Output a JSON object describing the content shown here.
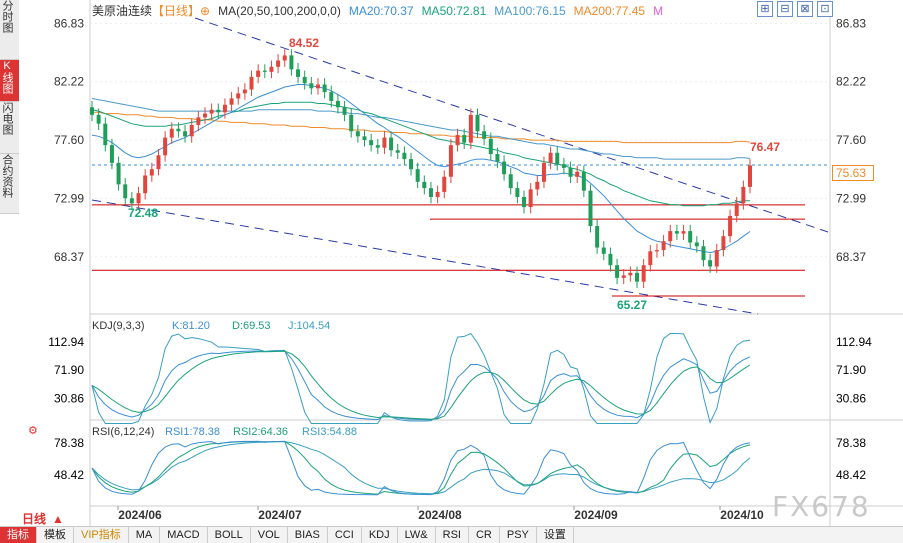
{
  "side_tabs": [
    {
      "label": "分时图",
      "active": false
    },
    {
      "label": "K线图",
      "active": true
    },
    {
      "label": "闪电图",
      "active": false
    },
    {
      "label": "合约资料",
      "active": false
    }
  ],
  "header": {
    "symbol": "美原油连续",
    "period_tag": "【日线】",
    "ma_title": "MA(20,50,100,200,0,0)",
    "ma20": "MA20:70.37",
    "ma50": "MA50:72.81",
    "ma100": "MA100:76.15",
    "ma200": "MA200:77.45",
    "m_label": "M",
    "colors": {
      "ma20": "#3b8fd6",
      "ma50": "#1aa37a",
      "ma100": "#4a9acb",
      "ma200": "#f08a2a",
      "m": "#e060e0"
    }
  },
  "window_buttons": [
    "⊞",
    "⊟",
    "⊠",
    "⊡"
  ],
  "last_price_tag": "75.63",
  "price_axis": {
    "labels": [
      "86.83",
      "82.22",
      "77.60",
      "72.99",
      "68.37"
    ],
    "ylim": [
      64.0,
      87.5
    ]
  },
  "price_annotations": {
    "high": "84.52",
    "low_left": "72.48",
    "low_right": "65.27",
    "recent_high": "76.47"
  },
  "kdj": {
    "title": "KDJ(9,3,3)",
    "k": "K:81.20",
    "d": "D:69.53",
    "j": "J:104.54",
    "axis_labels": [
      "112.94",
      "71.90",
      "30.86"
    ]
  },
  "rsi": {
    "title": "RSI(6,12,24)",
    "rsi1": "RSI1:78.38",
    "rsi2": "RSI2:64.36",
    "rsi3": "RSI3:54.88",
    "axis_labels": [
      "78.38",
      "48.42"
    ]
  },
  "date_axis": [
    "2024/06",
    "2024/07",
    "2024/08",
    "2024/09",
    "2024/10"
  ],
  "period_selector": "日线",
  "bottom_buttons": [
    "指标",
    "模板",
    "VIP指标",
    "MA",
    "MACD",
    "BOLL",
    "VOL",
    "BIAS",
    "CCI",
    "KDJ",
    "LW&",
    "RSI",
    "CR",
    "PSY",
    "设置"
  ],
  "watermark": "FX678",
  "chart_data": {
    "type": "candlestick",
    "closes": [
      79.6,
      78.9,
      77.2,
      75.8,
      74.1,
      73.0,
      72.6,
      73.4,
      74.8,
      75.3,
      76.4,
      77.8,
      78.5,
      78.3,
      77.9,
      78.8,
      79.4,
      79.7,
      80.0,
      79.8,
      80.4,
      80.9,
      81.3,
      81.6,
      82.6,
      83.1,
      83.0,
      83.4,
      83.9,
      84.3,
      83.2,
      82.6,
      82.1,
      81.7,
      82.0,
      81.4,
      80.7,
      80.2,
      79.6,
      78.3,
      77.9,
      77.6,
      77.2,
      77.0,
      77.8,
      76.8,
      76.6,
      76.1,
      75.3,
      74.3,
      73.8,
      73.1,
      73.5,
      74.7,
      77.2,
      78.0,
      77.4,
      79.6,
      78.3,
      77.7,
      76.5,
      75.9,
      74.9,
      73.8,
      73.1,
      72.3,
      73.7,
      74.3,
      75.8,
      76.6,
      75.7,
      75.4,
      74.7,
      75.1,
      73.6,
      70.8,
      69.1,
      68.6,
      67.7,
      66.7,
      66.9,
      67.1,
      66.4,
      67.7,
      68.8,
      68.9,
      69.6,
      70.4,
      70.2,
      70.4,
      69.5,
      69.2,
      68.1,
      67.6,
      68.9,
      70.0,
      71.6,
      72.6,
      73.9,
      75.6
    ],
    "highs_lows_note": "",
    "ma20": [
      78.0,
      77.9,
      77.7,
      77.4,
      77.0,
      76.6,
      76.3,
      76.2,
      76.3,
      76.5,
      76.8,
      77.1,
      77.4,
      77.6,
      77.8,
      78.1,
      78.4,
      78.7,
      79.0,
      79.3,
      79.6,
      79.8,
      80.1,
      80.4,
      80.7,
      81.0,
      81.2,
      81.4,
      81.6,
      81.8,
      81.9,
      82.0,
      82.0,
      81.9,
      81.8,
      81.7,
      81.5,
      81.2,
      80.9,
      80.5,
      80.1,
      79.7,
      79.3,
      78.9,
      78.6,
      78.2,
      77.9,
      77.5,
      77.1,
      76.7,
      76.3,
      75.9,
      75.6,
      75.5,
      75.6,
      75.7,
      75.8,
      76.0,
      76.1,
      76.1,
      76.0,
      75.9,
      75.7,
      75.5,
      75.3,
      75.0,
      74.9,
      74.8,
      74.8,
      74.9,
      74.9,
      75.0,
      74.9,
      74.8,
      74.6,
      74.2,
      73.7,
      73.2,
      72.6,
      72.0,
      71.4,
      70.9,
      70.4,
      70.1,
      69.8,
      69.6,
      69.5,
      69.3,
      69.2,
      69.1,
      69.0,
      68.9,
      68.8,
      68.7,
      68.8,
      69.0,
      69.3,
      69.6,
      70.0,
      70.37
    ],
    "ma50": [
      80.0,
      79.9,
      79.7,
      79.5,
      79.3,
      79.1,
      78.9,
      78.8,
      78.7,
      78.7,
      78.7,
      78.7,
      78.8,
      78.8,
      78.9,
      79.0,
      79.1,
      79.2,
      79.3,
      79.5,
      79.6,
      79.8,
      79.9,
      80.1,
      80.2,
      80.3,
      80.4,
      80.5,
      80.5,
      80.6,
      80.6,
      80.6,
      80.6,
      80.6,
      80.5,
      80.5,
      80.4,
      80.3,
      80.2,
      80.1,
      80.0,
      79.8,
      79.7,
      79.5,
      79.3,
      79.1,
      78.9,
      78.7,
      78.5,
      78.3,
      78.1,
      77.9,
      77.7,
      77.6,
      77.5,
      77.4,
      77.3,
      77.2,
      77.1,
      77.0,
      76.9,
      76.8,
      76.6,
      76.5,
      76.4,
      76.2,
      76.1,
      76.0,
      75.9,
      75.8,
      75.7,
      75.6,
      75.4,
      75.3,
      75.1,
      74.9,
      74.6,
      74.4,
      74.1,
      73.9,
      73.6,
      73.4,
      73.2,
      73.0,
      72.8,
      72.7,
      72.6,
      72.5,
      72.5,
      72.4,
      72.4,
      72.4,
      72.4,
      72.5,
      72.5,
      72.6,
      72.6,
      72.7,
      72.8,
      72.81
    ],
    "ma100": [
      80.9,
      80.8,
      80.7,
      80.6,
      80.5,
      80.4,
      80.3,
      80.2,
      80.1,
      80.0,
      79.9,
      79.9,
      79.9,
      79.9,
      79.9,
      79.9,
      79.9,
      79.9,
      79.9,
      79.9,
      79.9,
      79.9,
      79.9,
      79.9,
      79.9,
      80.0,
      80.0,
      80.0,
      80.0,
      80.0,
      80.0,
      80.0,
      80.0,
      80.0,
      79.9,
      79.9,
      79.9,
      79.8,
      79.8,
      79.7,
      79.7,
      79.6,
      79.5,
      79.4,
      79.4,
      79.3,
      79.2,
      79.1,
      79.0,
      78.9,
      78.8,
      78.7,
      78.6,
      78.5,
      78.4,
      78.4,
      78.3,
      78.2,
      78.1,
      78.0,
      77.9,
      77.9,
      77.8,
      77.7,
      77.6,
      77.5,
      77.4,
      77.3,
      77.3,
      77.2,
      77.1,
      77.0,
      76.9,
      76.9,
      76.8,
      76.7,
      76.6,
      76.5,
      76.5,
      76.4,
      76.3,
      76.3,
      76.2,
      76.2,
      76.2,
      76.2,
      76.1,
      76.1,
      76.1,
      76.1,
      76.1,
      76.1,
      76.1,
      76.1,
      76.1,
      76.1,
      76.1,
      76.2,
      76.2,
      76.15
    ],
    "ma200": [
      79.8,
      79.8,
      79.7,
      79.7,
      79.7,
      79.6,
      79.6,
      79.6,
      79.5,
      79.5,
      79.4,
      79.4,
      79.4,
      79.3,
      79.3,
      79.3,
      79.2,
      79.2,
      79.2,
      79.1,
      79.1,
      79.0,
      79.0,
      79.0,
      78.9,
      78.9,
      78.9,
      78.8,
      78.8,
      78.8,
      78.7,
      78.7,
      78.7,
      78.6,
      78.6,
      78.6,
      78.5,
      78.5,
      78.5,
      78.4,
      78.4,
      78.4,
      78.3,
      78.3,
      78.3,
      78.2,
      78.2,
      78.2,
      78.1,
      78.1,
      78.1,
      78.0,
      78.0,
      78.0,
      77.9,
      77.9,
      77.9,
      77.9,
      77.8,
      77.8,
      77.8,
      77.8,
      77.7,
      77.7,
      77.7,
      77.7,
      77.6,
      77.6,
      77.6,
      77.6,
      77.6,
      77.5,
      77.5,
      77.5,
      77.5,
      77.5,
      77.5,
      77.5,
      77.5,
      77.5,
      77.4,
      77.4,
      77.4,
      77.4,
      77.4,
      77.4,
      77.4,
      77.4,
      77.4,
      77.4,
      77.4,
      77.4,
      77.4,
      77.4,
      77.4,
      77.4,
      77.4,
      77.5,
      77.5,
      77.45
    ],
    "horizontal_levels": [
      72.48,
      71.35,
      67.3,
      65.27
    ],
    "current_price": 75.63
  }
}
